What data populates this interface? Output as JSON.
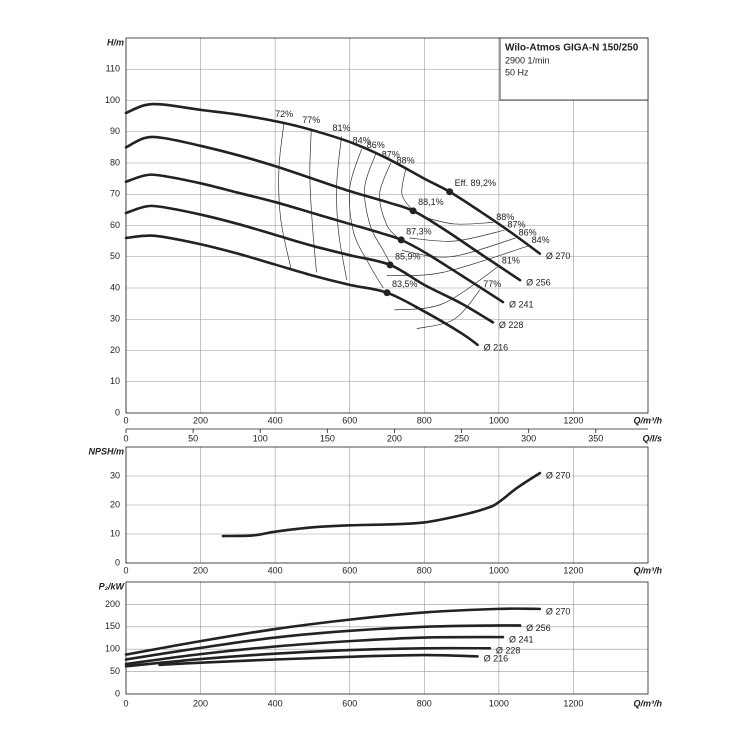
{
  "chart_data": [
    {
      "type": "line",
      "title": "Wilo-Atmos GIGA-N 150/250",
      "speed": "2900 1/min",
      "frequency": "50 Hz",
      "ylabel": "H/m",
      "xlabel": "Q/m³/h",
      "x2label": "Q/l/s",
      "xlim": [
        0,
        1400
      ],
      "xticks": [
        0,
        200,
        400,
        600,
        800,
        1000,
        1200
      ],
      "x2lim": [
        0,
        388.9
      ],
      "x2ticks": [
        0,
        50,
        100,
        150,
        200,
        250,
        300,
        350
      ],
      "ylim": [
        0,
        120
      ],
      "yticks": [
        0,
        10,
        20,
        30,
        40,
        50,
        60,
        70,
        80,
        90,
        100,
        110
      ],
      "grid": true,
      "color": "#222222",
      "series": [
        {
          "name": "Ø 270",
          "x": [
            0,
            50,
            100,
            200,
            300,
            416,
            500,
            605,
            700,
            800,
            868,
            950,
            1030,
            1110
          ],
          "values": [
            96,
            98.5,
            98.7,
            97,
            95.5,
            93,
            90.5,
            86.5,
            81.5,
            75,
            70.8,
            64.5,
            58,
            51
          ]
        },
        {
          "name": "Ø 256",
          "x": [
            0,
            50,
            100,
            200,
            300,
            400,
            500,
            600,
            700,
            770,
            850,
            950,
            1057
          ],
          "values": [
            85,
            88,
            88,
            85.5,
            82.5,
            79,
            75,
            71,
            67.5,
            64.7,
            59,
            51,
            42.5
          ]
        },
        {
          "name": "Ø 241",
          "x": [
            0,
            50,
            92,
            200,
            300,
            400,
            500,
            600,
            700,
            738,
            800,
            900,
            1011
          ],
          "values": [
            74,
            76,
            76,
            73.5,
            70.5,
            67.5,
            64,
            60.5,
            57,
            55.4,
            51.5,
            44,
            35.5
          ]
        },
        {
          "name": "Ø 228",
          "x": [
            0,
            50,
            92,
            200,
            300,
            400,
            500,
            600,
            708,
            800,
            900,
            984
          ],
          "values": [
            64,
            66,
            66,
            63.5,
            60.5,
            57,
            53.5,
            50.5,
            47.4,
            41,
            35,
            29
          ]
        },
        {
          "name": "Ø 216",
          "x": [
            0,
            50,
            92,
            200,
            300,
            400,
            500,
            600,
            700,
            800,
            900,
            943
          ],
          "values": [
            56,
            56.7,
            56.5,
            54,
            51,
            47.5,
            44,
            41,
            38.5,
            32.5,
            25.5,
            21.8
          ]
        }
      ],
      "bep": [
        {
          "label": "Eff. 89,2%",
          "x": 868,
          "y": 70.8
        },
        {
          "label": "88,1%",
          "x": 770,
          "y": 64.7
        },
        {
          "label": "87,3%",
          "x": 738,
          "y": 55.4
        },
        {
          "label": "85,9%",
          "x": 708,
          "y": 47.4
        },
        {
          "label": "83,5%",
          "x": 700,
          "y": 38.5
        }
      ],
      "efficiency_contours": [
        {
          "label": "72%",
          "label_at": "start",
          "x": [
            424,
            410,
            415,
            443
          ],
          "values": [
            93,
            78,
            62,
            46
          ]
        },
        {
          "label": "77%",
          "label_at": "start",
          "x": [
            497,
            493,
            500,
            511
          ],
          "values": [
            91,
            76,
            60,
            45
          ]
        },
        {
          "label": "81%",
          "label_at": "start",
          "x": [
            578,
            565,
            570,
            592
          ],
          "values": [
            88.5,
            73,
            58,
            42.6
          ]
        },
        {
          "label": "84%",
          "label_at": "start",
          "x": [
            632,
            600,
            610,
            650,
            690
          ],
          "values": [
            84.5,
            72,
            58,
            48,
            40
          ]
        },
        {
          "label": "86%",
          "label_at": "start",
          "x": [
            670,
            640,
            655,
            690,
            712
          ],
          "values": [
            83,
            72,
            60,
            52,
            47.2
          ]
        },
        {
          "label": "87%",
          "label_at": "start",
          "x": [
            710,
            680,
            700,
            735
          ],
          "values": [
            80,
            70,
            60,
            55.5
          ]
        },
        {
          "label": "88%",
          "label_at": "start",
          "x": [
            750,
            740,
            770
          ],
          "values": [
            78,
            70,
            64.7
          ]
        },
        {
          "label": "88%",
          "label_at": "end",
          "x": [
            790,
            880,
            985
          ],
          "values": [
            63,
            60.5,
            61
          ]
        },
        {
          "label": "87%",
          "label_at": "end",
          "x": [
            760,
            880,
            1015
          ],
          "values": [
            56,
            55,
            58.5
          ]
        },
        {
          "label": "86%",
          "label_at": "end",
          "x": [
            740,
            870,
            1045
          ],
          "values": [
            52,
            50,
            56
          ]
        },
        {
          "label": "84%",
          "label_at": "end",
          "x": [
            700,
            850,
            1080
          ],
          "values": [
            44,
            45,
            53.5
          ]
        },
        {
          "label": "81%",
          "label_at": "end",
          "x": [
            720,
            850,
            1000
          ],
          "values": [
            33,
            35,
            47
          ]
        },
        {
          "label": "77%",
          "label_at": "end",
          "x": [
            780,
            880,
            950
          ],
          "values": [
            27,
            30,
            39.5
          ]
        }
      ]
    },
    {
      "type": "line",
      "ylabel": "NPSH/m",
      "xlabel": "Q/m³/h",
      "xlim": [
        0,
        1400
      ],
      "xticks": [
        0,
        200,
        400,
        600,
        800,
        1000,
        1200
      ],
      "ylim": [
        0,
        40
      ],
      "yticks": [
        0,
        10,
        20,
        30
      ],
      "grid": true,
      "color": "#222222",
      "series": [
        {
          "name": "Ø 270",
          "x": [
            260,
            340,
            400,
            500,
            600,
            700,
            800,
            900,
            970,
            1000,
            1050,
            1110
          ],
          "values": [
            9.3,
            9.5,
            10.8,
            12.3,
            13,
            13.3,
            14,
            16.5,
            19,
            21,
            26,
            31
          ]
        }
      ]
    },
    {
      "type": "line",
      "ylabel": "P₂/kW",
      "xlabel": "Q/m³/h",
      "xlim": [
        0,
        1400
      ],
      "xticks": [
        0,
        200,
        400,
        600,
        800,
        1000,
        1200
      ],
      "ylim": [
        0,
        250
      ],
      "yticks": [
        0,
        50,
        100,
        150,
        200
      ],
      "grid": true,
      "color": "#222222",
      "series": [
        {
          "name": "Ø 270",
          "x": [
            0,
            200,
            400,
            600,
            800,
            1000,
            1110
          ],
          "values": [
            88,
            118,
            145,
            166,
            182,
            190,
            190
          ]
        },
        {
          "name": "Ø 256",
          "x": [
            0,
            200,
            400,
            600,
            800,
            1000,
            1057
          ],
          "values": [
            77,
            103,
            126,
            141,
            150,
            153,
            153
          ]
        },
        {
          "name": "Ø 241",
          "x": [
            0,
            200,
            400,
            600,
            800,
            1011
          ],
          "values": [
            67,
            89,
            106,
            118,
            126,
            127
          ]
        },
        {
          "name": "Ø 228",
          "x": [
            0,
            200,
            400,
            600,
            800,
            976
          ],
          "values": [
            62,
            78,
            90,
            98,
            102,
            102
          ]
        },
        {
          "name": "Ø 216",
          "x": [
            90,
            200,
            400,
            600,
            800,
            943
          ],
          "values": [
            65,
            70,
            77,
            83,
            87,
            84
          ]
        }
      ]
    }
  ]
}
